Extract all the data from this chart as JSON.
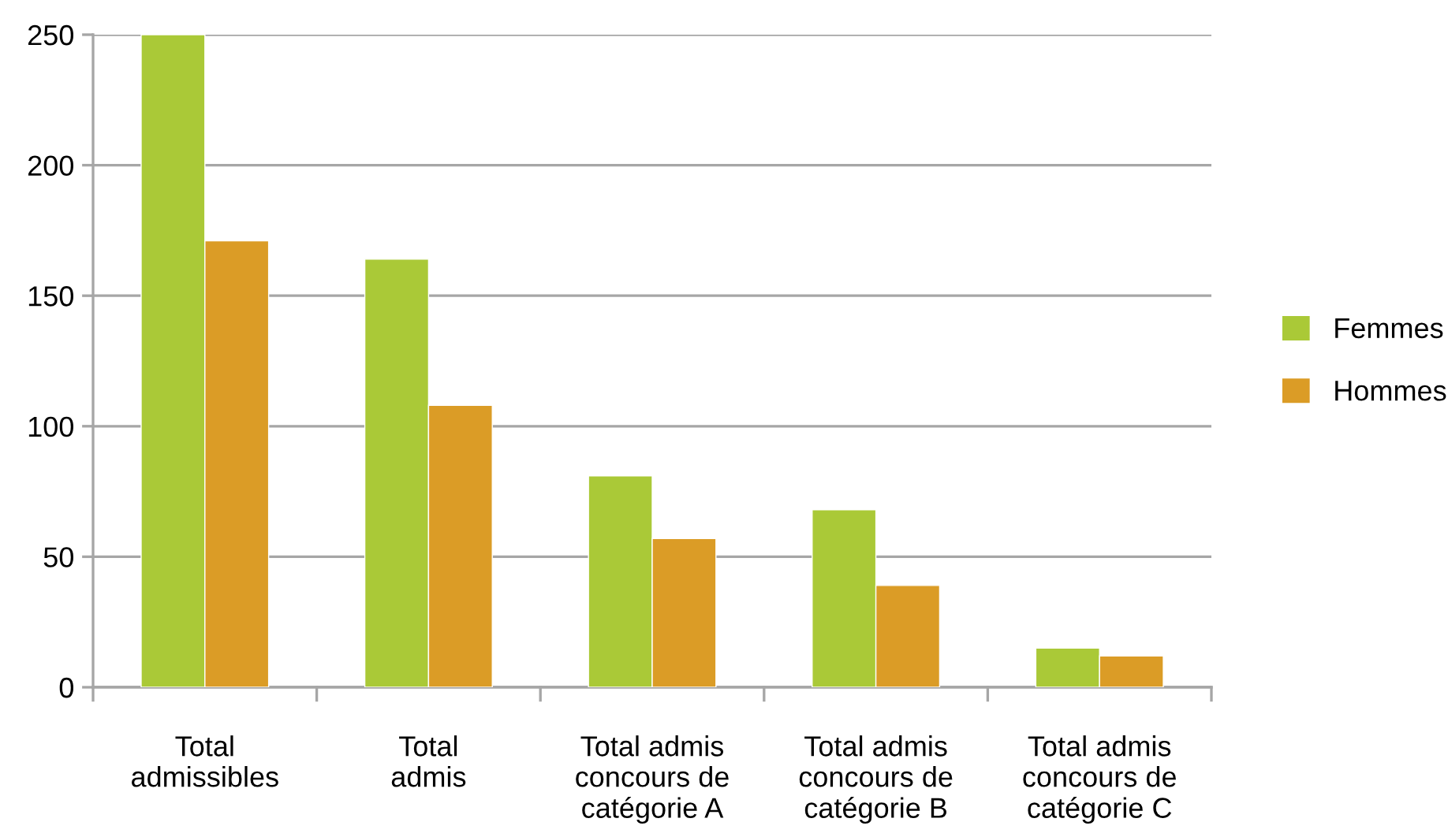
{
  "chart_data": {
    "type": "bar",
    "categories": [
      "Total\nadmissibles",
      "Total\nadmis",
      "Total admis\nconcours de\ncatégorie A",
      "Total admis\nconcours de\ncatégorie B",
      "Total admis\nconcours de\ncatégorie C"
    ],
    "series": [
      {
        "name": "Femmes",
        "color": "#aac937",
        "values": [
          250,
          164,
          81,
          68,
          15
        ]
      },
      {
        "name": "Hommes",
        "color": "#db9c26",
        "values": [
          171,
          108,
          57,
          39,
          12
        ]
      }
    ],
    "ylim": [
      0,
      250
    ],
    "yticks": [
      0,
      50,
      100,
      150,
      200,
      250
    ],
    "grid": "y",
    "legend": "right"
  }
}
